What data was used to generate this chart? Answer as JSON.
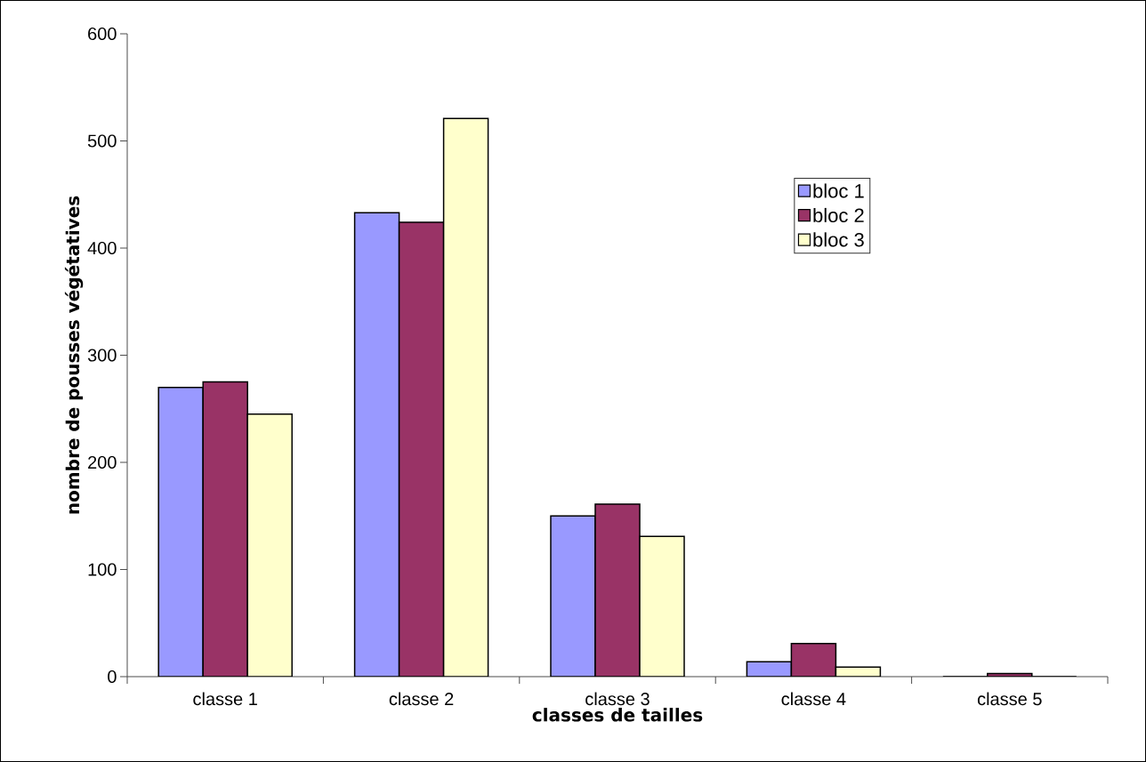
{
  "chart_data": {
    "type": "bar",
    "xlabel": "classes de tailles",
    "ylabel": "nombre de pousses végétatives",
    "categories": [
      "classe 1",
      "classe 2",
      "classe 3",
      "classe 4",
      "classe 5"
    ],
    "series": [
      {
        "name": "bloc 1",
        "color": "#9999ff",
        "values": [
          270,
          433,
          150,
          14,
          0
        ]
      },
      {
        "name": "bloc 2",
        "color": "#993366",
        "values": [
          275,
          424,
          161,
          31,
          3
        ]
      },
      {
        "name": "bloc 3",
        "color": "#ffffcc",
        "values": [
          245,
          521,
          131,
          9,
          0
        ]
      }
    ],
    "ylim": [
      0,
      600
    ],
    "yticks": [
      0,
      100,
      200,
      300,
      400,
      500,
      600
    ],
    "legend": "top right"
  }
}
